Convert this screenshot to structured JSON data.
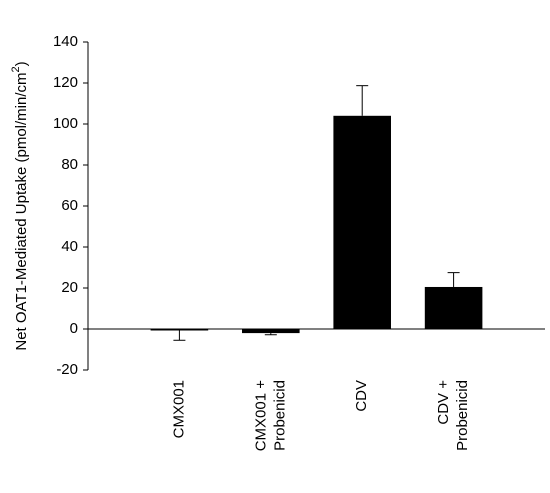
{
  "chart_data": {
    "type": "bar",
    "ylabel": "Net OAT1-Mediated Uptake (pmol/min/cm",
    "ylabel_sup": "2",
    "ylabel_end": ")",
    "categories": [
      [
        "CMX001"
      ],
      [
        "CMX001 +",
        "Probenicid"
      ],
      [
        "CDV"
      ],
      [
        "CDV +",
        "Probenicid"
      ]
    ],
    "values": [
      -0.3,
      -2,
      104,
      20.5
    ],
    "errors": [
      5.2,
      0.8,
      14.7,
      7
    ],
    "color": "#000000",
    "ylim": [
      -20,
      140
    ],
    "yticks": [
      -20,
      0,
      20,
      40,
      60,
      80,
      100,
      120,
      140
    ]
  }
}
